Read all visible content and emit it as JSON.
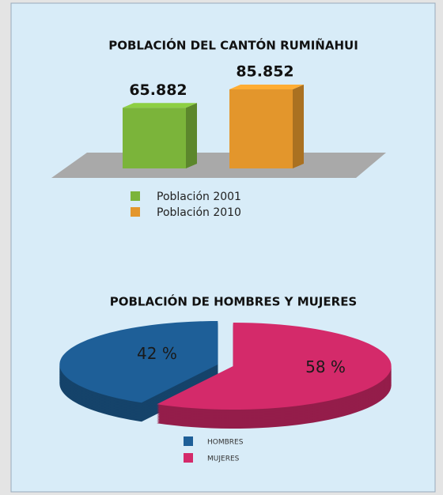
{
  "chart_data": [
    {
      "type": "bar",
      "title": "POBLACIÓN DEL CANTÓN RUMIÑAHUI",
      "categories": [
        "Población 2001",
        "Población 2010"
      ],
      "values": [
        65882,
        85852
      ],
      "value_labels": [
        "65.882",
        "85.852"
      ],
      "colors": [
        "#7bb43a",
        "#e3962c"
      ]
    },
    {
      "type": "pie",
      "title": "POBLACIÓN DE HOMBRES Y MUJERES",
      "categories": [
        "HOMBRES",
        "MUJERES"
      ],
      "values": [
        42,
        58
      ],
      "value_labels": [
        "42 %",
        "58 %"
      ],
      "colors": [
        "#1e5f98",
        "#d42a6a"
      ]
    }
  ]
}
